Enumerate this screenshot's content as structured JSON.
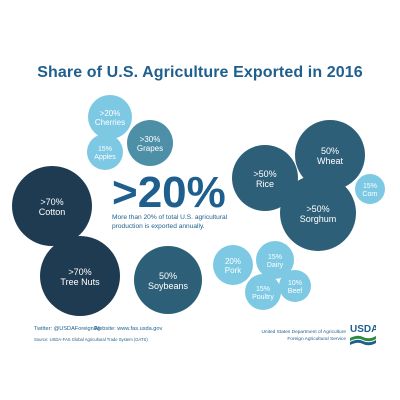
{
  "title": "Share of U.S. Agriculture Exported in 2016",
  "highlight": {
    "value": ">20%",
    "caption": "More than 20% of total U.S. agricultural production is exported annually."
  },
  "footer": {
    "twitter": "Twitter: @USDAForeignAg",
    "website": "Website: www.fas.usda.gov",
    "source": "Source: USDA-FAS Global Agricultural Trade System (GATS)",
    "agency_line1": "United States Department of Agriculture",
    "agency_line2": "Foreign Agricultural Service",
    "logo_text": "USDA"
  },
  "colors": {
    "navy": "#1f3b52",
    "slate": "#2e5f79",
    "teal": "#4e8fa8",
    "sky": "#7dc9e3",
    "title": "#1e5f8e"
  },
  "chart_data": {
    "type": "bubble",
    "title": "Share of U.S. Agriculture Exported in 2016",
    "items": [
      {
        "name": "Cherries",
        "value_label": ">20%",
        "value": 20,
        "color": "#7dc9e3"
      },
      {
        "name": "Apples",
        "value_label": "15%",
        "value": 15,
        "color": "#7dc9e3"
      },
      {
        "name": "Grapes",
        "value_label": ">30%",
        "value": 30,
        "color": "#4e8fa8"
      },
      {
        "name": "Cotton",
        "value_label": ">70%",
        "value": 70,
        "color": "#1f3b52"
      },
      {
        "name": "Tree Nuts",
        "value_label": ">70%",
        "value": 70,
        "color": "#1f3b52"
      },
      {
        "name": "Soybeans",
        "value_label": "50%",
        "value": 50,
        "color": "#2e5f79"
      },
      {
        "name": "Rice",
        "value_label": ">50%",
        "value": 50,
        "color": "#2e5f79"
      },
      {
        "name": "Wheat",
        "value_label": "50%",
        "value": 50,
        "color": "#2e5f79"
      },
      {
        "name": "Corn",
        "value_label": "15%",
        "value": 15,
        "color": "#7dc9e3"
      },
      {
        "name": "Sorghum",
        "value_label": ">50%",
        "value": 50,
        "color": "#2e5f79"
      },
      {
        "name": "Pork",
        "value_label": "20%",
        "value": 20,
        "color": "#7dc9e3"
      },
      {
        "name": "Dairy",
        "value_label": "15%",
        "value": 15,
        "color": "#7dc9e3"
      },
      {
        "name": "Poultry",
        "value_label": "15%",
        "value": 15,
        "color": "#7dc9e3"
      },
      {
        "name": "Beef",
        "value_label": "10%",
        "value": 10,
        "color": "#7dc9e3"
      }
    ]
  }
}
